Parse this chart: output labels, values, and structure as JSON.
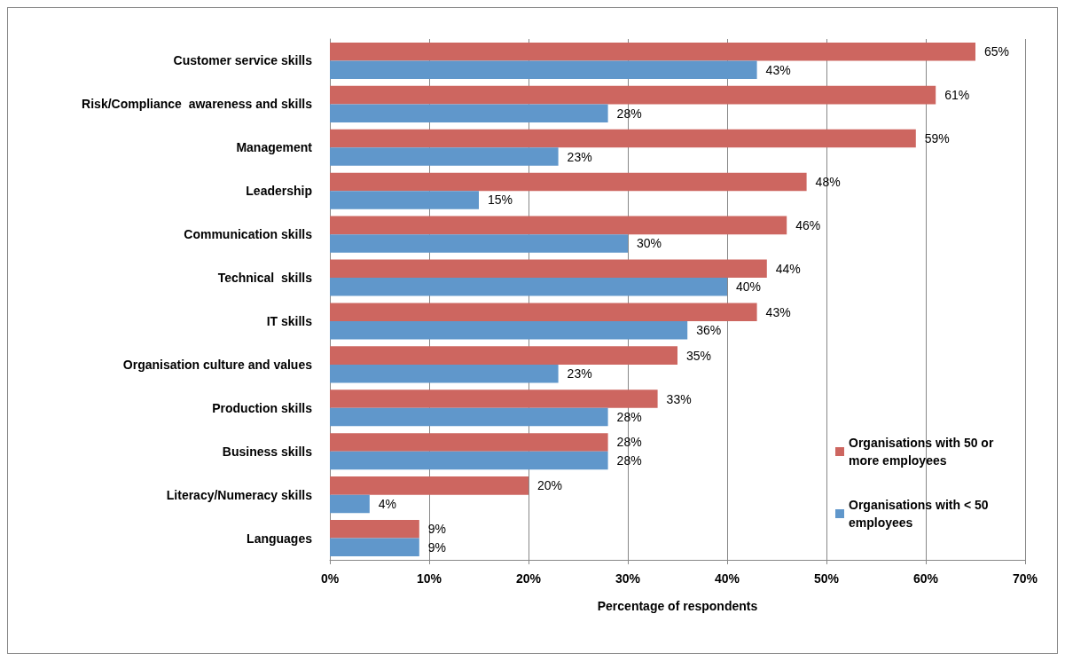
{
  "chart_data": {
    "type": "bar",
    "orientation": "horizontal",
    "xlabel": "Percentage of respondents",
    "categories": [
      "Customer service skills",
      "Risk/Compliance  awareness and skills",
      "Management",
      "Leadership",
      "Communication skills",
      "Technical  skills",
      "IT skills",
      "Organisation culture and values",
      "Production skills",
      "Business skills",
      "Literacy/Numeracy skills",
      "Languages"
    ],
    "series": [
      {
        "name": "Organisations with 50 or more employees",
        "color": "#cd6660",
        "values": [
          65,
          61,
          59,
          48,
          46,
          44,
          43,
          35,
          33,
          28,
          20,
          9
        ],
        "value_labels": [
          "65%",
          "61%",
          "59%",
          "48%",
          "46%",
          "44%",
          "43%",
          "35%",
          "33%",
          "28%",
          "20%",
          "9%"
        ]
      },
      {
        "name": "Organisations with < 50 employees",
        "color": "#6097cb",
        "values": [
          43,
          28,
          23,
          15,
          30,
          40,
          36,
          23,
          28,
          28,
          4,
          9
        ],
        "value_labels": [
          "43%",
          "28%",
          "23%",
          "15%",
          "30%",
          "40%",
          "36%",
          "23%",
          "28%",
          "28%",
          "4%",
          "9%"
        ]
      }
    ],
    "xlim": [
      0,
      70
    ],
    "xticks": [
      {
        "value": 0,
        "label": "0%"
      },
      {
        "value": 10,
        "label": "10%"
      },
      {
        "value": 20,
        "label": "20%"
      },
      {
        "value": 30,
        "label": "30%"
      },
      {
        "value": 40,
        "label": "40%"
      },
      {
        "value": 50,
        "label": "50%"
      },
      {
        "value": 60,
        "label": "60%"
      },
      {
        "value": 70,
        "label": "70%"
      }
    ],
    "grid": "x",
    "legend": "right"
  }
}
